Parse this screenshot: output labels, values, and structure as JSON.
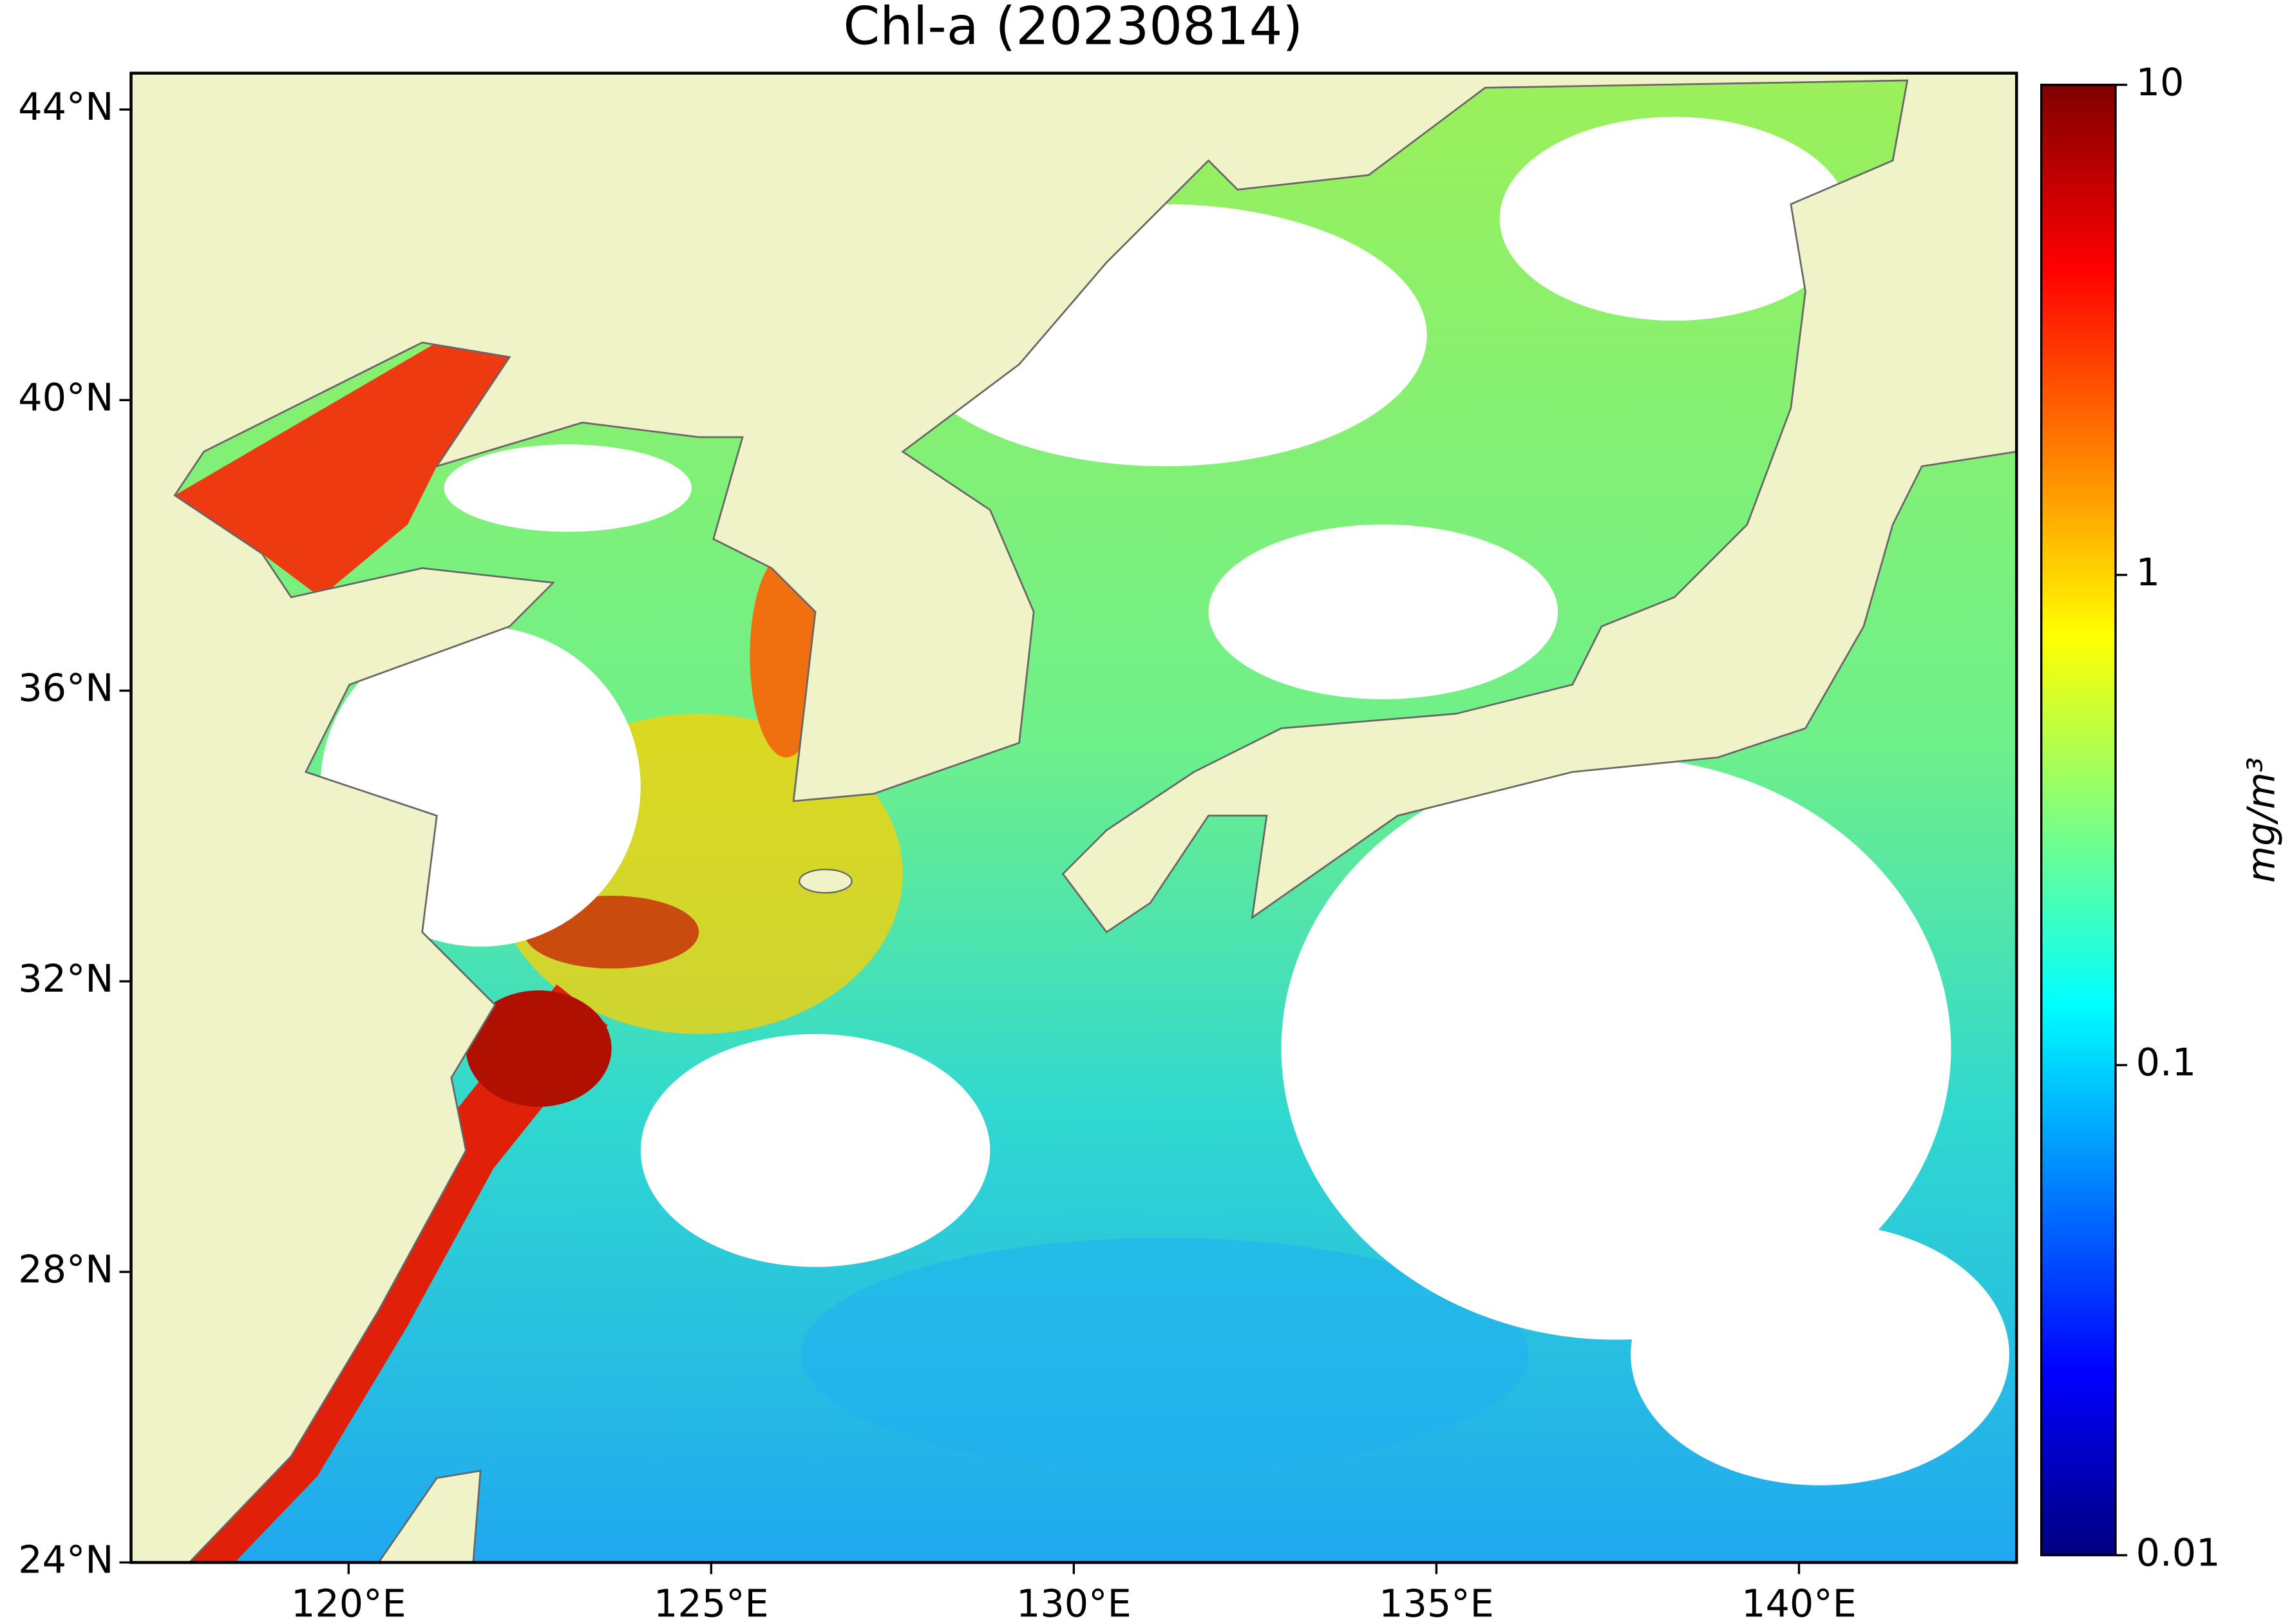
{
  "title": "Chl-a (20230814)",
  "map": {
    "lon_range": [
      117,
      143
    ],
    "lat_range": [
      24,
      44.5
    ],
    "xticks": [
      {
        "value": 120,
        "label": "120°E"
      },
      {
        "value": 125,
        "label": "125°E"
      },
      {
        "value": 130,
        "label": "130°E"
      },
      {
        "value": 135,
        "label": "135°E"
      },
      {
        "value": 140,
        "label": "140°E"
      }
    ],
    "yticks": [
      {
        "value": 24,
        "label": "24°N"
      },
      {
        "value": 28,
        "label": "28°N"
      },
      {
        "value": 32,
        "label": "32°N"
      },
      {
        "value": 36,
        "label": "36°N"
      },
      {
        "value": 40,
        "label": "40°N"
      },
      {
        "value": 44,
        "label": "44°N"
      }
    ],
    "land_color": "#f0f2c8"
  },
  "colorbar": {
    "label": "mg/m³",
    "scale": "log",
    "lim": [
      0.01,
      10
    ],
    "ticks": [
      0.01,
      0.1,
      1,
      10
    ],
    "colormap": [
      "#00007f",
      "#0000ff",
      "#007fff",
      "#00ffff",
      "#7fff7f",
      "#ffff00",
      "#ff7f00",
      "#ff0000",
      "#7f0000"
    ]
  }
}
